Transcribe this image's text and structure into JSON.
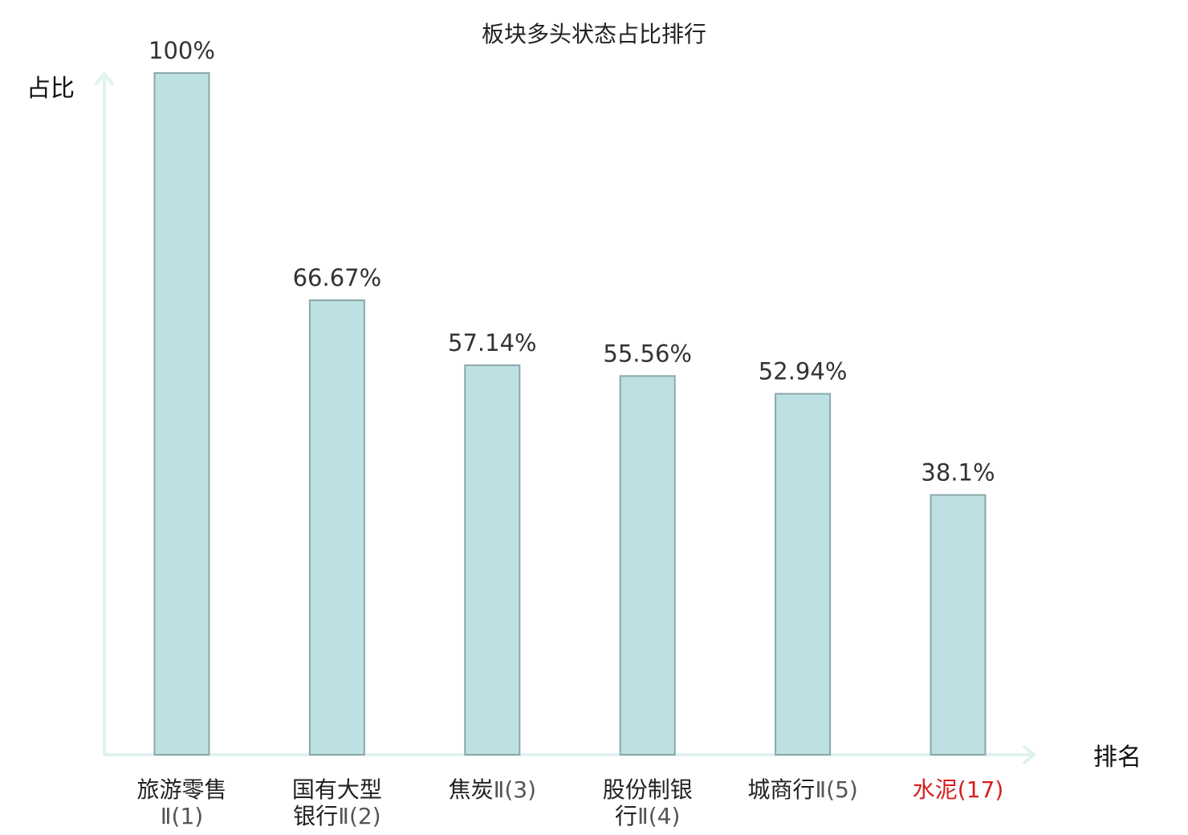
{
  "chart_data": {
    "type": "bar",
    "title": "板块多头状态占比排行",
    "xlabel": "排名",
    "ylabel": "占比",
    "ylim": [
      0,
      100
    ],
    "grid": false,
    "legend": "none",
    "categories": [
      {
        "lines": [
          {
            "main": "旅游零售",
            "num": ""
          },
          {
            "main": "",
            "num": "Ⅱ(1)"
          }
        ],
        "highlight": false
      },
      {
        "lines": [
          {
            "main": "国有大型",
            "num": ""
          },
          {
            "main": "银行",
            "num": "Ⅱ(2)"
          }
        ],
        "highlight": false
      },
      {
        "lines": [
          {
            "main": "焦炭",
            "num": "Ⅱ(3)"
          }
        ],
        "highlight": false
      },
      {
        "lines": [
          {
            "main": "股份制银",
            "num": ""
          },
          {
            "main": "行",
            "num": "Ⅱ(4)"
          }
        ],
        "highlight": false
      },
      {
        "lines": [
          {
            "main": "城商行",
            "num": "Ⅱ(5)"
          }
        ],
        "highlight": false
      },
      {
        "lines": [
          {
            "main": "水泥",
            "num": "(17)"
          }
        ],
        "highlight": true
      }
    ],
    "values": [
      100,
      66.67,
      57.14,
      55.56,
      52.94,
      38.1
    ],
    "value_labels": [
      "100%",
      "66.67%",
      "57.14%",
      "55.56%",
      "52.94%",
      "38.1%"
    ],
    "colors": {
      "bar_fill": "#bde0e2",
      "bar_stroke": "#8aa8aa",
      "axis": "#e0f2ef",
      "highlight": "#d81e1e"
    }
  }
}
